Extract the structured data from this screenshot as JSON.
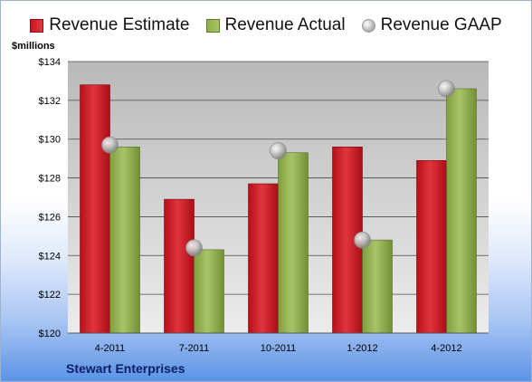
{
  "legend": {
    "estimate": "Revenue Estimate",
    "actual": "Revenue Actual",
    "gaap": "Revenue GAAP"
  },
  "y_unit": "$millions",
  "footer": "Stewart Enterprises",
  "colors": {
    "estimate": "#cc1a22",
    "actual": "#9bbb59",
    "gaap": "#b0b0b0"
  },
  "chart_data": {
    "type": "bar",
    "categories": [
      "4-2011",
      "7-2011",
      "10-2011",
      "1-2012",
      "4-2012"
    ],
    "series": [
      {
        "name": "Revenue Estimate",
        "type": "bar",
        "values": [
          132.8,
          126.9,
          127.7,
          129.6,
          128.9
        ]
      },
      {
        "name": "Revenue Actual",
        "type": "bar",
        "values": [
          129.6,
          124.3,
          129.3,
          124.8,
          132.6
        ]
      },
      {
        "name": "Revenue GAAP",
        "type": "scatter",
        "values": [
          129.7,
          124.4,
          129.4,
          124.8,
          132.6
        ]
      }
    ],
    "ylabel": "$millions",
    "ylim": [
      120,
      134
    ],
    "yticks": [
      120,
      122,
      124,
      126,
      128,
      130,
      132,
      134
    ],
    "ytick_labels": [
      "$120",
      "$122",
      "$124",
      "$126",
      "$128",
      "$130",
      "$132",
      "$134"
    ],
    "grid": true,
    "legend_position": "top"
  }
}
